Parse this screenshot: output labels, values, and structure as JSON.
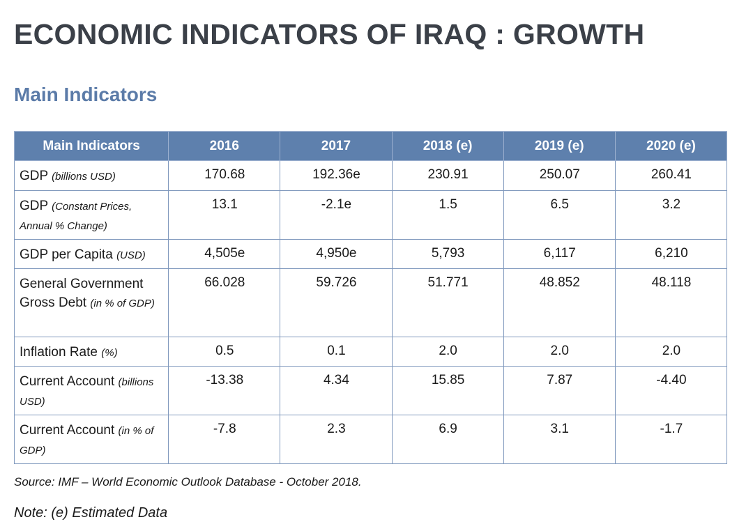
{
  "page_title": "ECONOMIC INDICATORS OF IRAQ : GROWTH",
  "section_title": "Main Indicators",
  "colors": {
    "title": "#3b4048",
    "section_title": "#5b7ba8",
    "table_header_bg": "#5e80ad",
    "table_border": "#7f98bd"
  },
  "table": {
    "headers": [
      "Main Indicators",
      "2016",
      "2017",
      "2018 (e)",
      "2019 (e)",
      "2020 (e)"
    ],
    "rows": [
      {
        "label": "GDP",
        "unit": "(billions USD)",
        "values": [
          "170.68",
          "192.36e",
          "230.91",
          "250.07",
          "260.41"
        ]
      },
      {
        "label": "GDP",
        "unit": "(Constant Prices, Annual % Change)",
        "values": [
          "13.1",
          "-2.1e",
          "1.5",
          "6.5",
          "3.2"
        ]
      },
      {
        "label": "GDP per Capita",
        "unit": "(USD)",
        "values": [
          "4,505e",
          "4,950e",
          "5,793",
          "6,117",
          "6,210"
        ]
      },
      {
        "label": "General Government Gross Debt",
        "unit": "(in % of GDP)",
        "values": [
          "66.028",
          "59.726",
          "51.771",
          "48.852",
          "48.118"
        ]
      },
      {
        "label": "Inflation Rate",
        "unit": "(%)",
        "values": [
          "0.5",
          "0.1",
          "2.0",
          "2.0",
          "2.0"
        ]
      },
      {
        "label": "Current Account",
        "unit": "(billions USD)",
        "values": [
          "-13.38",
          "4.34",
          "15.85",
          "7.87",
          "-4.40"
        ]
      },
      {
        "label": "Current Account",
        "unit": "(in % of GDP)",
        "values": [
          "-7.8",
          "2.3",
          "6.9",
          "3.1",
          "-1.7"
        ]
      }
    ]
  },
  "source_note": "Source: IMF – World Economic Outlook Database - October 2018.",
  "estimate_note": "Note: (e) Estimated Data"
}
